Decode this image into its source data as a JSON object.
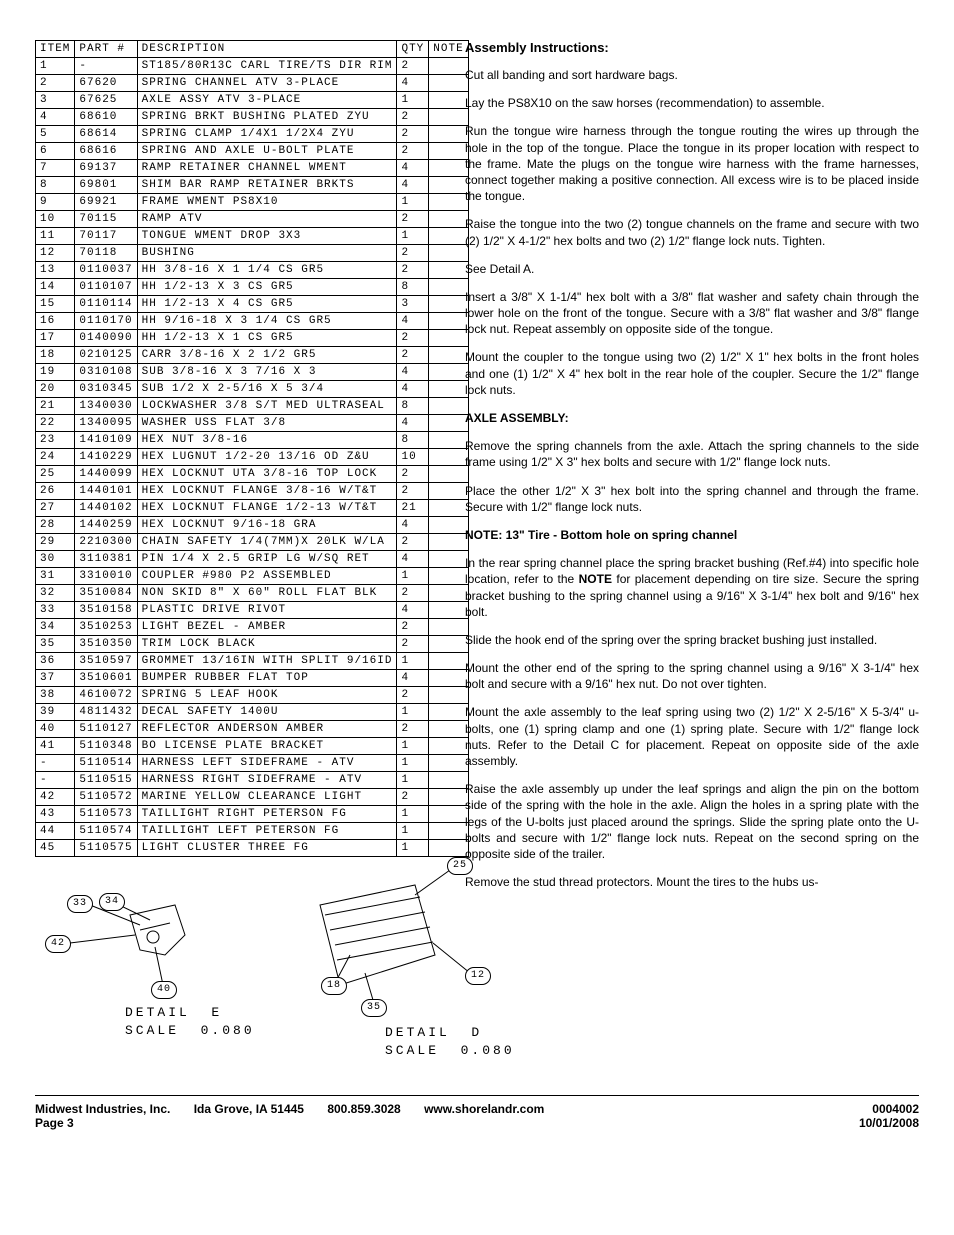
{
  "parts_table": {
    "columns": [
      "ITEM",
      "PART #",
      "DESCRIPTION",
      "QTY",
      "NOTE"
    ],
    "rows": [
      [
        "1",
        "-",
        "ST185/80R13C CARL TIRE/TS DIR RIM",
        "2",
        ""
      ],
      [
        "2",
        "67620",
        "SPRING CHANNEL ATV 3-PLACE",
        "4",
        ""
      ],
      [
        "3",
        "67625",
        "AXLE ASSY ATV 3-PLACE",
        "1",
        ""
      ],
      [
        "4",
        "68610",
        "SPRING BRKT BUSHING PLATED ZYU",
        "2",
        ""
      ],
      [
        "5",
        "68614",
        "SPRING CLAMP  1/4X1 1/2X4  ZYU",
        "2",
        ""
      ],
      [
        "6",
        "68616",
        "SPRING AND AXLE U-BOLT PLATE",
        "2",
        ""
      ],
      [
        "7",
        "69137",
        "RAMP RETAINER CHANNEL WMENT",
        "4",
        ""
      ],
      [
        "8",
        "69801",
        "SHIM BAR RAMP RETAINER BRKTS",
        "4",
        ""
      ],
      [
        "9",
        "69921",
        "FRAME WMENT PS8X10",
        "1",
        ""
      ],
      [
        "10",
        "70115",
        "RAMP ATV",
        "2",
        ""
      ],
      [
        "11",
        "70117",
        "TONGUE WMENT DROP 3X3",
        "1",
        ""
      ],
      [
        "12",
        "70118",
        "BUSHING",
        "2",
        ""
      ],
      [
        "13",
        "0110037",
        "HH 3/8-16 X 1 1/4 CS GR5",
        "2",
        ""
      ],
      [
        "14",
        "0110107",
        "HH 1/2-13 X 3 CS GR5",
        "8",
        ""
      ],
      [
        "15",
        "0110114",
        "HH 1/2-13 X 4 CS GR5",
        "3",
        ""
      ],
      [
        "16",
        "0110170",
        "HH 9/16-18 X 3 1/4 CS GR5",
        "4",
        ""
      ],
      [
        "17",
        "0140090",
        "HH 1/2-13 X 1 CS GR5",
        "2",
        ""
      ],
      [
        "18",
        "0210125",
        "CARR 3/8-16 X 2 1/2 GR5",
        "2",
        ""
      ],
      [
        "19",
        "0310108",
        "SUB 3/8-16 X 3 7/16 X 3",
        "4",
        ""
      ],
      [
        "20",
        "0310345",
        "SUB 1/2 X 2-5/16 X 5 3/4",
        "4",
        ""
      ],
      [
        "21",
        "1340030",
        "LOCKWASHER 3/8 S/T MED ULTRASEAL",
        "8",
        ""
      ],
      [
        "22",
        "1340095",
        "WASHER USS FLAT 3/8",
        "4",
        ""
      ],
      [
        "23",
        "1410109",
        "HEX NUT 3/8-16",
        "8",
        ""
      ],
      [
        "24",
        "1410229",
        "HEX LUGNUT 1/2-20 13/16 OD Z&U",
        "10",
        ""
      ],
      [
        "25",
        "1440099",
        "HEX LOCKNUT UTA 3/8-16 TOP LOCK",
        "2",
        ""
      ],
      [
        "26",
        "1440101",
        "HEX LOCKNUT FLANGE 3/8-16 W/T&T",
        "2",
        ""
      ],
      [
        "27",
        "1440102",
        "HEX LOCKNUT FLANGE 1/2-13 W/T&T",
        "21",
        ""
      ],
      [
        "28",
        "1440259",
        "HEX LOCKNUT 9/16-18 GRA",
        "4",
        ""
      ],
      [
        "29",
        "2210300",
        "CHAIN SAFETY 1/4(7MM)X 20LK W/LA",
        "2",
        ""
      ],
      [
        "30",
        "3110381",
        "PIN 1/4 X 2.5 GRIP LG W/SQ RET",
        "4",
        ""
      ],
      [
        "31",
        "3310010",
        "COUPLER #980 P2 ASSEMBLED",
        "1",
        ""
      ],
      [
        "32",
        "3510084",
        "NON SKID 8\" X 60\" ROLL FLAT BLK",
        "2",
        ""
      ],
      [
        "33",
        "3510158",
        "PLASTIC DRIVE RIVOT",
        "4",
        ""
      ],
      [
        "34",
        "3510253",
        "LIGHT BEZEL - AMBER",
        "2",
        ""
      ],
      [
        "35",
        "3510350",
        "TRIM LOCK BLACK",
        "2",
        ""
      ],
      [
        "36",
        "3510597",
        "GROMMET 13/16IN  WITH SPLIT 9/16ID",
        "1",
        ""
      ],
      [
        "37",
        "3510601",
        "BUMPER RUBBER FLAT TOP",
        "4",
        ""
      ],
      [
        "38",
        "4610072",
        "SPRING  5 LEAF HOOK",
        "2",
        ""
      ],
      [
        "39",
        "4811432",
        "DECAL SAFETY 1400U",
        "1",
        ""
      ],
      [
        "40",
        "5110127",
        "REFLECTOR ANDERSON AMBER",
        "2",
        ""
      ],
      [
        "41",
        "5110348",
        "BO LICENSE PLATE BRACKET",
        "1",
        ""
      ],
      [
        "-",
        "5110514",
        "HARNESS LEFT SIDEFRAME - ATV",
        "1",
        ""
      ],
      [
        "-",
        "5110515",
        "HARNESS RIGHT SIDEFRAME - ATV",
        "1",
        ""
      ],
      [
        "42",
        "5110572",
        "MARINE YELLOW CLEARANCE LIGHT",
        "2",
        ""
      ],
      [
        "43",
        "5110573",
        "TAILLIGHT RIGHT PETERSON FG",
        "1",
        ""
      ],
      [
        "44",
        "5110574",
        "TAILLIGHT LEFT PETERSON FG",
        "1",
        ""
      ],
      [
        "45",
        "5110575",
        "LIGHT CLUSTER THREE FG",
        "1",
        ""
      ]
    ]
  },
  "drawings": {
    "detail_e": {
      "balloons": {
        "b33": "33",
        "b34": "34",
        "b42": "42",
        "b40": "40"
      },
      "label_line1": "DETAIL  E",
      "label_line2": "SCALE  0.080"
    },
    "detail_d": {
      "balloons": {
        "b25": "25",
        "b18": "18",
        "b12": "12",
        "b35": "35"
      },
      "label_line1": "DETAIL  D",
      "label_line2": "SCALE  0.080"
    }
  },
  "instructions": {
    "title": "Assembly Instructions:",
    "p1": "Cut all banding and sort hardware bags.",
    "p2": "Lay the PS8X10 on the saw horses (recommendation) to assemble.",
    "p3": "Run the tongue wire harness through the tongue routing the wires up through the hole in the top of the tongue. Place the tongue in its proper location with respect to the frame. Mate the plugs on the tongue wire harness with the frame harnesses, connect together making a positive connection. All excess wire is to be placed inside the tongue.",
    "p4": "Raise the tongue into the two (2) tongue channels on the frame and secure with two (2) 1/2\" X 4-1/2\" hex bolts and two (2) 1/2\" flange lock nuts. Tighten.",
    "p5": "See Detail A.",
    "p6": "Insert a 3/8\" X 1-1/4\" hex bolt with a 3/8\" flat washer and safety chain through the lower hole on the front of the tongue. Secure with a 3/8\" flat washer and 3/8\" flange lock nut. Repeat assembly on opposite side of the tongue.",
    "p7": "Mount the coupler to the tongue using two (2) 1/2\" X 1\" hex bolts in the front holes and one (1) 1/2\" X 4\" hex bolt in the rear hole of the coupler. Secure the 1/2\" flange lock nuts.",
    "axle_heading": "AXLE ASSEMBLY:",
    "p8": "Remove the spring channels from the axle. Attach the spring channels to the side frame using 1/2\" X 3\" hex bolts and secure with 1/2\" flange lock nuts.",
    "p9": "Place the other 1/2\" X 3\" hex bolt into the spring channel and through the frame. Secure with 1/2\" flange lock nuts.",
    "note": "NOTE:   13\" Tire - Bottom hole on spring channel",
    "p10_a": "In the rear spring channel place the spring bracket bushing (Ref.#4) into specific hole location, refer to the ",
    "p10_note": "NOTE",
    "p10_b": " for placement depending on tire size. Secure the spring bracket bushing to the spring channel using a 9/16\" X 3-1/4\" hex bolt and 9/16\" hex bolt.",
    "p11": "Slide the hook end of the spring over the spring bracket bushing just installed.",
    "p12": "Mount the other end of the spring to the spring channel using a 9/16\" X 3-1/4\" hex bolt and secure with a 9/16\" hex nut. Do not over tighten.",
    "p13": "Mount the axle assembly to the leaf spring using two (2) 1/2\" X 2-5/16\" X 5-3/4\" u-bolts, one (1) spring clamp and one (1) spring plate. Secure with 1/2\" flange lock nuts. Refer to the Detail C for placement. Repeat on opposite side of the axle assembly.",
    "p14": "Raise the axle assembly up under the leaf springs and align the pin on the bottom side of the spring with the hole in the axle. Align the holes in a spring plate with the legs of the U-bolts just placed around the springs. Slide the spring plate onto  the U-bolts and secure with 1/2\" flange lock nuts. Repeat on the second spring on the opposite side of the trailer.",
    "p15": "Remove the stud thread protectors. Mount the tires to the hubs us-"
  },
  "footer": {
    "company": "Midwest Industries, Inc.",
    "location": "Ida Grove, IA  51445",
    "phone": "800.859.3028",
    "website": "www.shorelandr.com",
    "docnum": "0004002",
    "page": "Page 3",
    "date": "10/01/2008"
  }
}
